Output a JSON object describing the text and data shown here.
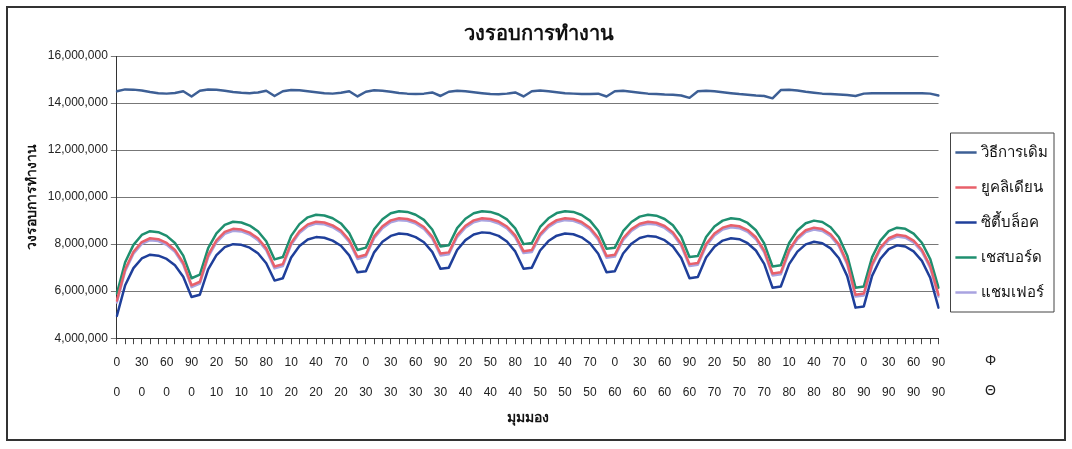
{
  "chart_data": {
    "type": "line",
    "title": "วงรอบการทำงาน",
    "xlabel": "มุมมอง",
    "ylabel": "วงรอบการทำงาน",
    "categories": [
      "0\n0",
      null,
      null,
      "30\n0",
      null,
      null,
      "60\n0",
      null,
      null,
      "90\n0",
      null,
      null,
      "20\n10",
      null,
      null,
      "50\n10",
      null,
      null,
      "80\n10",
      null,
      null,
      "10\n20",
      null,
      null,
      "40\n20",
      null,
      null,
      "70\n20",
      null,
      null,
      "0\n30",
      null,
      null,
      "30\n30",
      null,
      null,
      "60\n30",
      null,
      null,
      "90\n30",
      null,
      null,
      "20\n40",
      null,
      null,
      "50\n40",
      null,
      null,
      "80\n40",
      null,
      null,
      "10\n50",
      null,
      null,
      "40\n50",
      null,
      null,
      "70\n50",
      null,
      null,
      "0\n60",
      null,
      null,
      "30\n60",
      null,
      null,
      "60\n60",
      null,
      null,
      "90\n60",
      null,
      null,
      "20\n70",
      null,
      null,
      "50\n70",
      null,
      null,
      "80\n70",
      null,
      null,
      "10\n80",
      null,
      null,
      "40\n80",
      null,
      null,
      "70\n80",
      null,
      null,
      "0\n90",
      null,
      null,
      "30\n90",
      null,
      null,
      "60\n90",
      null,
      null,
      "90\n90"
    ],
    "series": [
      {
        "name": "วิธีการเดิม",
        "color": "#3d5f95",
        "values": [
          14500000,
          14580000,
          14570000,
          14530000,
          14470000,
          14420000,
          14400000,
          14430000,
          14500000,
          14280000,
          14520000,
          14580000,
          14560000,
          14520000,
          14470000,
          14440000,
          14420000,
          14450000,
          14520000,
          14300000,
          14500000,
          14550000,
          14540000,
          14500000,
          14460000,
          14420000,
          14400000,
          14440000,
          14500000,
          14280000,
          14480000,
          14540000,
          14520000,
          14480000,
          14430000,
          14400000,
          14380000,
          14400000,
          14450000,
          14300000,
          14480000,
          14520000,
          14500000,
          14460000,
          14420000,
          14380000,
          14370000,
          14400000,
          14450000,
          14280000,
          14500000,
          14530000,
          14500000,
          14460000,
          14420000,
          14400000,
          14380000,
          14380000,
          14400000,
          14280000,
          14500000,
          14520000,
          14480000,
          14440000,
          14400000,
          14380000,
          14360000,
          14350000,
          14320000,
          14220000,
          14500000,
          14520000,
          14500000,
          14460000,
          14420000,
          14380000,
          14350000,
          14320000,
          14300000,
          14200000,
          14550000,
          14560000,
          14530000,
          14480000,
          14440000,
          14400000,
          14380000,
          14360000,
          14340000,
          14300000,
          14400000,
          14420000,
          14420000,
          14420000,
          14420000,
          14420000,
          14420000,
          14420000,
          14400000,
          14320000
        ]
      },
      {
        "name": "ยูคลิเดียน",
        "color": "#e8606a",
        "values": [
          5600000,
          6930000,
          7670000,
          8090000,
          8250000,
          8210000,
          8050000,
          7750000,
          7210000,
          6250000,
          6400000,
          7530000,
          8160000,
          8520000,
          8650000,
          8620000,
          8490000,
          8250000,
          7820000,
          7050000,
          7150000,
          8050000,
          8550000,
          8840000,
          8950000,
          8920000,
          8800000,
          8580000,
          8170000,
          7450000,
          7550000,
          8330000,
          8760000,
          9010000,
          9100000,
          9070000,
          8950000,
          8730000,
          8320000,
          7600000,
          7650000,
          8380000,
          8780000,
          9010000,
          9100000,
          9070000,
          8960000,
          8750000,
          8370000,
          7700000,
          7750000,
          8430000,
          8800000,
          9020000,
          9100000,
          9070000,
          8940000,
          8700000,
          8270000,
          7500000,
          7550000,
          8250000,
          8640000,
          8870000,
          8950000,
          8910000,
          8770000,
          8500000,
          8010000,
          7150000,
          7200000,
          8000000,
          8450000,
          8700000,
          8800000,
          8760000,
          8600000,
          8290000,
          7730000,
          6750000,
          6800000,
          7750000,
          8280000,
          8590000,
          8700000,
          8640000,
          8420000,
          7990000,
          7220000,
          5850000,
          5900000,
          7150000,
          7850000,
          8250000,
          8400000,
          8350000,
          8150000,
          7760000,
          7070000,
          5850000
        ]
      },
      {
        "name": "ซิตี้บล็อค",
        "color": "#1f3f9a",
        "values": [
          4950000,
          6250000,
          6980000,
          7390000,
          7550000,
          7510000,
          7370000,
          7100000,
          6610000,
          5750000,
          5850000,
          6930000,
          7530000,
          7870000,
          8000000,
          7970000,
          7850000,
          7610000,
          7190000,
          6450000,
          6550000,
          7430000,
          7920000,
          8200000,
          8300000,
          8270000,
          8150000,
          7930000,
          7520000,
          6800000,
          6850000,
          7650000,
          8100000,
          8350000,
          8450000,
          8420000,
          8300000,
          8080000,
          7670000,
          6950000,
          7000000,
          7750000,
          8170000,
          8410000,
          8500000,
          8470000,
          8350000,
          8110000,
          7690000,
          6950000,
          7000000,
          7730000,
          8130000,
          8360000,
          8450000,
          8420000,
          8290000,
          8040000,
          7590000,
          6800000,
          6850000,
          7600000,
          8020000,
          8260000,
          8350000,
          8310000,
          8170000,
          7900000,
          7410000,
          6550000,
          6600000,
          7430000,
          7890000,
          8150000,
          8250000,
          8210000,
          8040000,
          7730000,
          7160000,
          6150000,
          6200000,
          7150000,
          7680000,
          7990000,
          8100000,
          8040000,
          7820000,
          7400000,
          6640000,
          5300000,
          5350000,
          6650000,
          7380000,
          7790000,
          7950000,
          7900000,
          7690000,
          7290000,
          6570000,
          5300000
        ]
      },
      {
        "name": "เชสบอร์ด",
        "color": "#1f8f6f",
        "values": [
          5900000,
          7230000,
          7970000,
          8390000,
          8550000,
          8510000,
          8350000,
          8050000,
          7510000,
          6550000,
          6700000,
          7830000,
          8460000,
          8820000,
          8950000,
          8920000,
          8790000,
          8550000,
          8120000,
          7350000,
          7450000,
          8350000,
          8850000,
          9140000,
          9250000,
          9220000,
          9100000,
          8880000,
          8470000,
          7750000,
          7850000,
          8630000,
          9060000,
          9310000,
          9400000,
          9370000,
          9250000,
          9030000,
          8620000,
          7900000,
          7950000,
          8680000,
          9080000,
          9310000,
          9400000,
          9370000,
          9260000,
          9050000,
          8670000,
          8000000,
          8050000,
          8730000,
          9100000,
          9320000,
          9400000,
          9370000,
          9240000,
          9000000,
          8570000,
          7800000,
          7850000,
          8550000,
          8940000,
          9170000,
          9250000,
          9210000,
          9070000,
          8800000,
          8310000,
          7450000,
          7500000,
          8300000,
          8750000,
          9000000,
          9100000,
          9060000,
          8900000,
          8590000,
          8030000,
          7050000,
          7100000,
          8050000,
          8580000,
          8890000,
          9000000,
          8940000,
          8720000,
          8290000,
          7520000,
          6150000,
          6200000,
          7450000,
          8150000,
          8550000,
          8700000,
          8650000,
          8450000,
          8060000,
          7370000,
          6150000
        ]
      },
      {
        "name": "แชมเฟอร์",
        "color": "#a9a3e0",
        "values": [
          5520000,
          6850000,
          7590000,
          8010000,
          8170000,
          8130000,
          7970000,
          7670000,
          7130000,
          6170000,
          6320000,
          7450000,
          8080000,
          8440000,
          8570000,
          8540000,
          8410000,
          8170000,
          7740000,
          6970000,
          7070000,
          7970000,
          8470000,
          8760000,
          8870000,
          8840000,
          8720000,
          8500000,
          8090000,
          7370000,
          7470000,
          8250000,
          8680000,
          8930000,
          9020000,
          8990000,
          8870000,
          8650000,
          8240000,
          7520000,
          7570000,
          8300000,
          8700000,
          8930000,
          9020000,
          8990000,
          8880000,
          8670000,
          8290000,
          7620000,
          7670000,
          8350000,
          8720000,
          8940000,
          9020000,
          8990000,
          8860000,
          8620000,
          8190000,
          7420000,
          7470000,
          8170000,
          8560000,
          8790000,
          8870000,
          8830000,
          8690000,
          8420000,
          7930000,
          7070000,
          7120000,
          7920000,
          8370000,
          8620000,
          8720000,
          8680000,
          8520000,
          8210000,
          7650000,
          6670000,
          6720000,
          7670000,
          8200000,
          8510000,
          8620000,
          8560000,
          8340000,
          7910000,
          7140000,
          5770000,
          5820000,
          7070000,
          7770000,
          8170000,
          8320000,
          8270000,
          8070000,
          7680000,
          6990000,
          5770000
        ]
      }
    ],
    "ylim": [
      4000000,
      16000000
    ],
    "yticks": [
      {
        "value": 4000000,
        "label": "4,000,000"
      },
      {
        "value": 6000000,
        "label": "6,000,000"
      },
      {
        "value": 8000000,
        "label": "8,000,000"
      },
      {
        "value": 10000000,
        "label": "10,000,000"
      },
      {
        "value": 12000000,
        "label": "12,000,000"
      },
      {
        "value": 14000000,
        "label": "14,000,000"
      },
      {
        "value": 16000000,
        "label": "16,000,000"
      }
    ],
    "grid": "y",
    "legend": "right",
    "marker": "none",
    "line_style": "solid",
    "annotations": [
      "Φ",
      "Θ"
    ]
  }
}
